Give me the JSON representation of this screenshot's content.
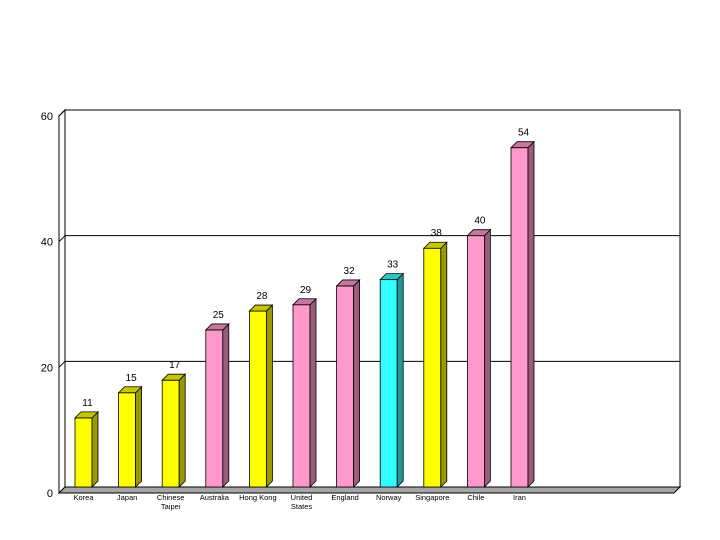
{
  "chart_data": {
    "type": "bar",
    "categories": [
      [
        "Korea"
      ],
      [
        "Japan"
      ],
      [
        "Chinese",
        "Taipei"
      ],
      [
        "Australia"
      ],
      [
        "Hong Kong"
      ],
      [
        "United",
        "States"
      ],
      [
        "England"
      ],
      [
        "Norway"
      ],
      [
        "Singapore"
      ],
      [
        "Chile"
      ],
      [
        "Iran"
      ]
    ],
    "values": [
      11,
      15,
      17,
      25,
      28,
      29,
      32,
      33,
      38,
      40,
      54
    ],
    "data_labels": [
      "11",
      "15",
      "17",
      "25",
      "28",
      "29",
      "32",
      "33",
      "38",
      "40",
      "54"
    ],
    "bar_colors": [
      "#ffff00",
      "#ffff00",
      "#ffff00",
      "#ff99cc",
      "#ffff00",
      "#ff99cc",
      "#ff99cc",
      "#33ffff",
      "#ffff00",
      "#ff99cc",
      "#ff99cc"
    ],
    "title": "",
    "xlabel": "",
    "ylabel": "",
    "ylim": [
      0,
      60
    ],
    "yticks": [
      0,
      20,
      40,
      60
    ],
    "grid": true,
    "legend": "none",
    "style": "3d"
  }
}
